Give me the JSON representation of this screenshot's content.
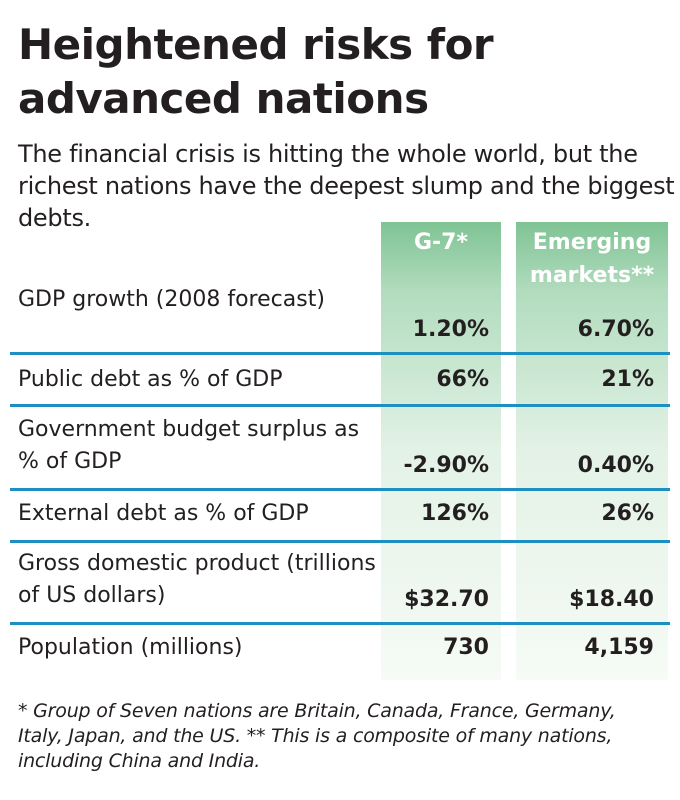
{
  "title": "Heightened risks for advanced nations",
  "subtitle": "The financial crisis is hitting the whole world, but the richest nations have the deepest slump and the biggest debts.",
  "colors": {
    "header_green": "#7fc394",
    "rule_blue": "#1d8fc0",
    "text": "#231f20"
  },
  "chart_data": {
    "type": "table",
    "columns": [
      "G-7*",
      "Emerging markets**"
    ],
    "rows": [
      {
        "label": "GDP growth (2008 forecast)",
        "values": [
          "1.20%",
          "6.70%"
        ]
      },
      {
        "label": "Public debt as % of GDP",
        "values": [
          "66%",
          "21%"
        ]
      },
      {
        "label": "Government budget surplus as % of GDP",
        "values": [
          "-2.90%",
          "0.40%"
        ]
      },
      {
        "label": "External debt as % of GDP",
        "values": [
          "126%",
          "26%"
        ]
      },
      {
        "label": "Gross domestic product (trillions of US dollars)",
        "values": [
          "$32.70",
          "$18.40"
        ]
      },
      {
        "label": "Population (millions)",
        "values": [
          "730",
          "4,159"
        ]
      }
    ]
  },
  "footnote": "* Group of Seven nations are Britain, Canada, France, Germany, Italy, Japan, and the US. ** This is a composite of many nations, including China and India."
}
